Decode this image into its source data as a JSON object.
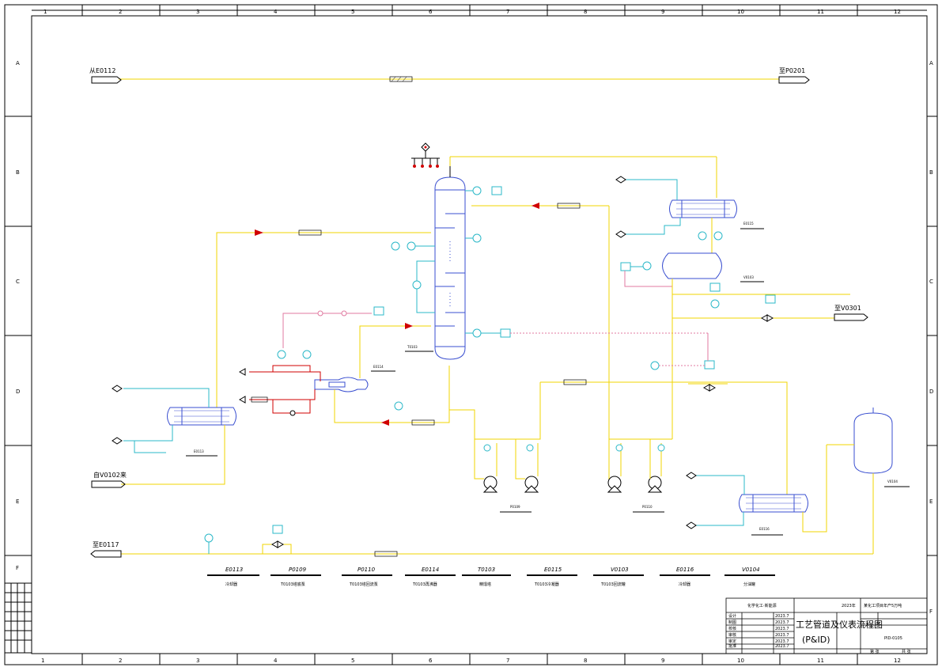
{
  "grid": {
    "cols": [
      "1",
      "2",
      "3",
      "4",
      "5",
      "6",
      "7",
      "8",
      "9",
      "10",
      "11",
      "12"
    ],
    "rows": [
      "A",
      "B",
      "C",
      "D",
      "E",
      "F"
    ]
  },
  "streams": {
    "from_e0112": "从E0112",
    "to_p0201": "至P0201",
    "from_v0102": "自V0102来",
    "to_e0117": "至E0117",
    "to_v0301": "至V0301"
  },
  "equipment_tags": {
    "t0103": "T0103",
    "e0114": "E0114",
    "e0113": "E0113",
    "e0115": "E0115",
    "v0103": "V0103",
    "v0104": "V0104",
    "e0116": "E0116",
    "p0109": "P0109",
    "p0110": "P0110"
  },
  "equipment_list": [
    {
      "tag": "E0113",
      "desc": "冷却器"
    },
    {
      "tag": "P0109",
      "desc": "T0103塔底泵"
    },
    {
      "tag": "P0110",
      "desc": "T0103塔回流泵"
    },
    {
      "tag": "E0114",
      "desc": "T0103再沸器"
    },
    {
      "tag": "T0103",
      "desc": "精馏塔"
    },
    {
      "tag": "E0115",
      "desc": "T0103冷凝器"
    },
    {
      "tag": "V0103",
      "desc": "T0103回流罐"
    },
    {
      "tag": "E0116",
      "desc": "冷却器"
    },
    {
      "tag": "V0104",
      "desc": "分油罐"
    }
  ],
  "title_block": {
    "school": "化学化工·新能源",
    "year": "2023年",
    "project": "某化工项目年产5万吨",
    "title": "工艺管道及仪表流程图",
    "subtitle": "(P&ID)",
    "drawing_no": "PID-0105",
    "rows": [
      {
        "role": "设计",
        "name": "",
        "date": "2023.7"
      },
      {
        "role": "制图",
        "name": "",
        "date": "2023.7"
      },
      {
        "role": "校核",
        "name": "",
        "date": "2023.7"
      },
      {
        "role": "审核",
        "name": "",
        "date": "2023.7"
      },
      {
        "role": "审定",
        "name": "",
        "date": "2023.7"
      },
      {
        "role": "批准",
        "name": "",
        "date": "2023.7"
      }
    ],
    "sheet": "第 张",
    "total": "共 张"
  },
  "colors": {
    "process": "#f2d400",
    "utility": "#2bb8c8",
    "signal": "#e07aa0",
    "steam": "#d00000",
    "equipment": "#3a4fd0"
  }
}
